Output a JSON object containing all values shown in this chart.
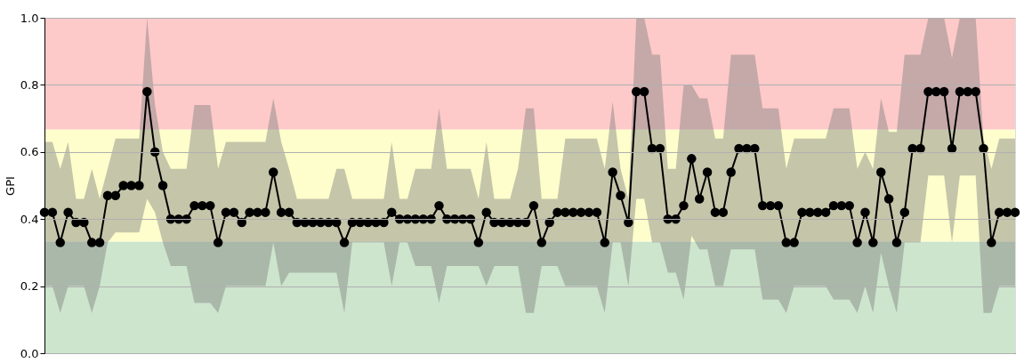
{
  "chart_data": {
    "type": "line",
    "ylabel": "GPI",
    "categories": [
      null,
      null,
      null,
      null,
      null,
      null,
      null,
      null,
      null,
      null,
      null,
      null,
      null,
      null,
      null,
      null,
      null,
      null,
      null,
      null,
      null,
      null,
      null,
      null,
      null,
      null,
      null,
      null,
      null,
      null,
      null,
      null,
      null,
      null,
      null,
      null,
      null,
      null,
      null,
      null,
      null,
      null,
      null,
      null,
      null,
      null,
      null,
      null,
      null,
      null,
      null,
      null,
      null,
      null,
      null,
      null,
      null,
      null,
      null,
      null,
      null,
      null,
      null,
      null,
      null,
      null,
      null,
      null,
      null,
      null,
      null,
      null,
      null,
      null,
      null,
      null,
      null,
      null,
      null,
      null,
      null,
      null,
      null,
      null,
      null,
      null,
      null,
      null,
      null,
      null,
      null,
      null,
      null,
      null,
      null,
      null,
      null,
      null,
      null,
      null,
      null,
      null,
      null,
      null,
      null,
      null,
      null,
      null,
      null,
      null,
      null,
      null,
      null,
      null,
      null,
      null,
      null,
      null,
      null,
      null,
      null,
      null,
      null,
      null
    ],
    "ylim": [
      0,
      1
    ],
    "yticks": [
      {
        "value": 0,
        "label": "0.0"
      },
      0.2,
      0.4,
      0.6,
      0.8,
      {
        "value": 1,
        "label": "1.0"
      }
    ],
    "tick_labels": "y",
    "grid": "y",
    "marker": "circle",
    "line_style": "solid",
    "bands": [
      {
        "axis": "y",
        "from": 0,
        "to": 0.333,
        "color": "#cde5cd"
      },
      {
        "axis": "y",
        "from": 0.333,
        "to": 0.667,
        "color": "#fefecc"
      },
      {
        "axis": "y",
        "from": 0.667,
        "to": 1,
        "color": "#fec9c9"
      }
    ],
    "series": [
      {
        "color": "#000000",
        "values": [
          0.42,
          0.42,
          0.33,
          0.42,
          0.39,
          0.39,
          0.33,
          0.33,
          0.47,
          0.47,
          0.5,
          0.5,
          0.5,
          0.78,
          0.6,
          0.5,
          0.4,
          0.4,
          0.4,
          0.44,
          0.44,
          0.44,
          0.33,
          0.42,
          0.42,
          0.39,
          0.42,
          0.42,
          0.42,
          0.54,
          0.42,
          0.42,
          0.39,
          0.39,
          0.39,
          0.39,
          0.39,
          0.39,
          0.33,
          0.39,
          0.39,
          0.39,
          0.39,
          0.39,
          0.42,
          0.4,
          0.4,
          0.4,
          0.4,
          0.4,
          0.44,
          0.4,
          0.4,
          0.4,
          0.4,
          0.33,
          0.42,
          0.39,
          0.39,
          0.39,
          0.39,
          0.39,
          0.44,
          0.33,
          0.39,
          0.42,
          0.42,
          0.42,
          0.42,
          0.42,
          0.42,
          0.33,
          0.54,
          0.47,
          0.39,
          0.78,
          0.78,
          0.61,
          0.61,
          0.4,
          0.4,
          0.44,
          0.58,
          0.46,
          0.54,
          0.42,
          0.42,
          0.54,
          0.61,
          0.61,
          0.61,
          0.44,
          0.44,
          0.44,
          0.33,
          0.33,
          0.42,
          0.42,
          0.42,
          0.42,
          0.44,
          0.44,
          0.44,
          0.33,
          0.42,
          0.33,
          0.54,
          0.46,
          0.33,
          0.42,
          0.61,
          0.61,
          0.78,
          0.78,
          0.78,
          0.61,
          0.78,
          0.78,
          0.78,
          0.61,
          0.33,
          0.42,
          0.42,
          0.42
        ],
        "lower": [
          0.2,
          0.2,
          0.12,
          0.2,
          0.2,
          0.2,
          0.12,
          0.2,
          0.33,
          0.36,
          0.36,
          0.36,
          0.36,
          0.46,
          0.42,
          0.33,
          0.26,
          0.26,
          0.26,
          0.15,
          0.15,
          0.15,
          0.12,
          0.2,
          0.2,
          0.2,
          0.2,
          0.2,
          0.2,
          0.33,
          0.2,
          0.24,
          0.24,
          0.24,
          0.24,
          0.24,
          0.24,
          0.24,
          0.12,
          0.33,
          0.33,
          0.33,
          0.33,
          0.33,
          0.2,
          0.33,
          0.33,
          0.26,
          0.26,
          0.26,
          0.15,
          0.26,
          0.26,
          0.26,
          0.26,
          0.26,
          0.2,
          0.26,
          0.26,
          0.26,
          0.26,
          0.12,
          0.12,
          0.26,
          0.26,
          0.26,
          0.2,
          0.2,
          0.2,
          0.2,
          0.2,
          0.12,
          0.33,
          0.33,
          0.2,
          0.46,
          0.46,
          0.33,
          0.33,
          0.24,
          0.24,
          0.16,
          0.35,
          0.31,
          0.31,
          0.2,
          0.2,
          0.31,
          0.31,
          0.31,
          0.31,
          0.16,
          0.16,
          0.16,
          0.12,
          0.2,
          0.2,
          0.2,
          0.2,
          0.2,
          0.16,
          0.16,
          0.16,
          0.12,
          0.2,
          0.12,
          0.3,
          0.2,
          0.12,
          0.33,
          0.33,
          0.33,
          0.53,
          0.53,
          0.53,
          0.33,
          0.53,
          0.53,
          0.53,
          0.12,
          0.12,
          0.2,
          0.2,
          0.2
        ],
        "upper": [
          0.63,
          0.63,
          0.55,
          0.63,
          0.46,
          0.46,
          0.55,
          0.46,
          0.55,
          0.64,
          0.64,
          0.64,
          0.64,
          1.0,
          0.74,
          0.6,
          0.55,
          0.55,
          0.55,
          0.74,
          0.74,
          0.74,
          0.55,
          0.63,
          0.63,
          0.63,
          0.63,
          0.63,
          0.63,
          0.76,
          0.63,
          0.55,
          0.46,
          0.46,
          0.46,
          0.46,
          0.46,
          0.55,
          0.55,
          0.46,
          0.46,
          0.46,
          0.46,
          0.46,
          0.63,
          0.46,
          0.46,
          0.55,
          0.55,
          0.55,
          0.73,
          0.55,
          0.55,
          0.55,
          0.55,
          0.46,
          0.63,
          0.46,
          0.46,
          0.46,
          0.55,
          0.73,
          0.73,
          0.46,
          0.46,
          0.46,
          0.64,
          0.64,
          0.64,
          0.64,
          0.64,
          0.55,
          0.75,
          0.55,
          0.46,
          1.0,
          1.0,
          0.89,
          0.89,
          0.55,
          0.55,
          0.8,
          0.8,
          0.76,
          0.76,
          0.64,
          0.64,
          0.89,
          0.89,
          0.89,
          0.89,
          0.73,
          0.73,
          0.73,
          0.55,
          0.64,
          0.64,
          0.64,
          0.64,
          0.64,
          0.73,
          0.73,
          0.73,
          0.55,
          0.6,
          0.55,
          0.76,
          0.66,
          0.66,
          0.89,
          0.89,
          0.89,
          1.0,
          1.0,
          1.0,
          0.88,
          1.0,
          1.0,
          1.0,
          0.64,
          0.55,
          0.64,
          0.64,
          0.64
        ]
      }
    ]
  }
}
